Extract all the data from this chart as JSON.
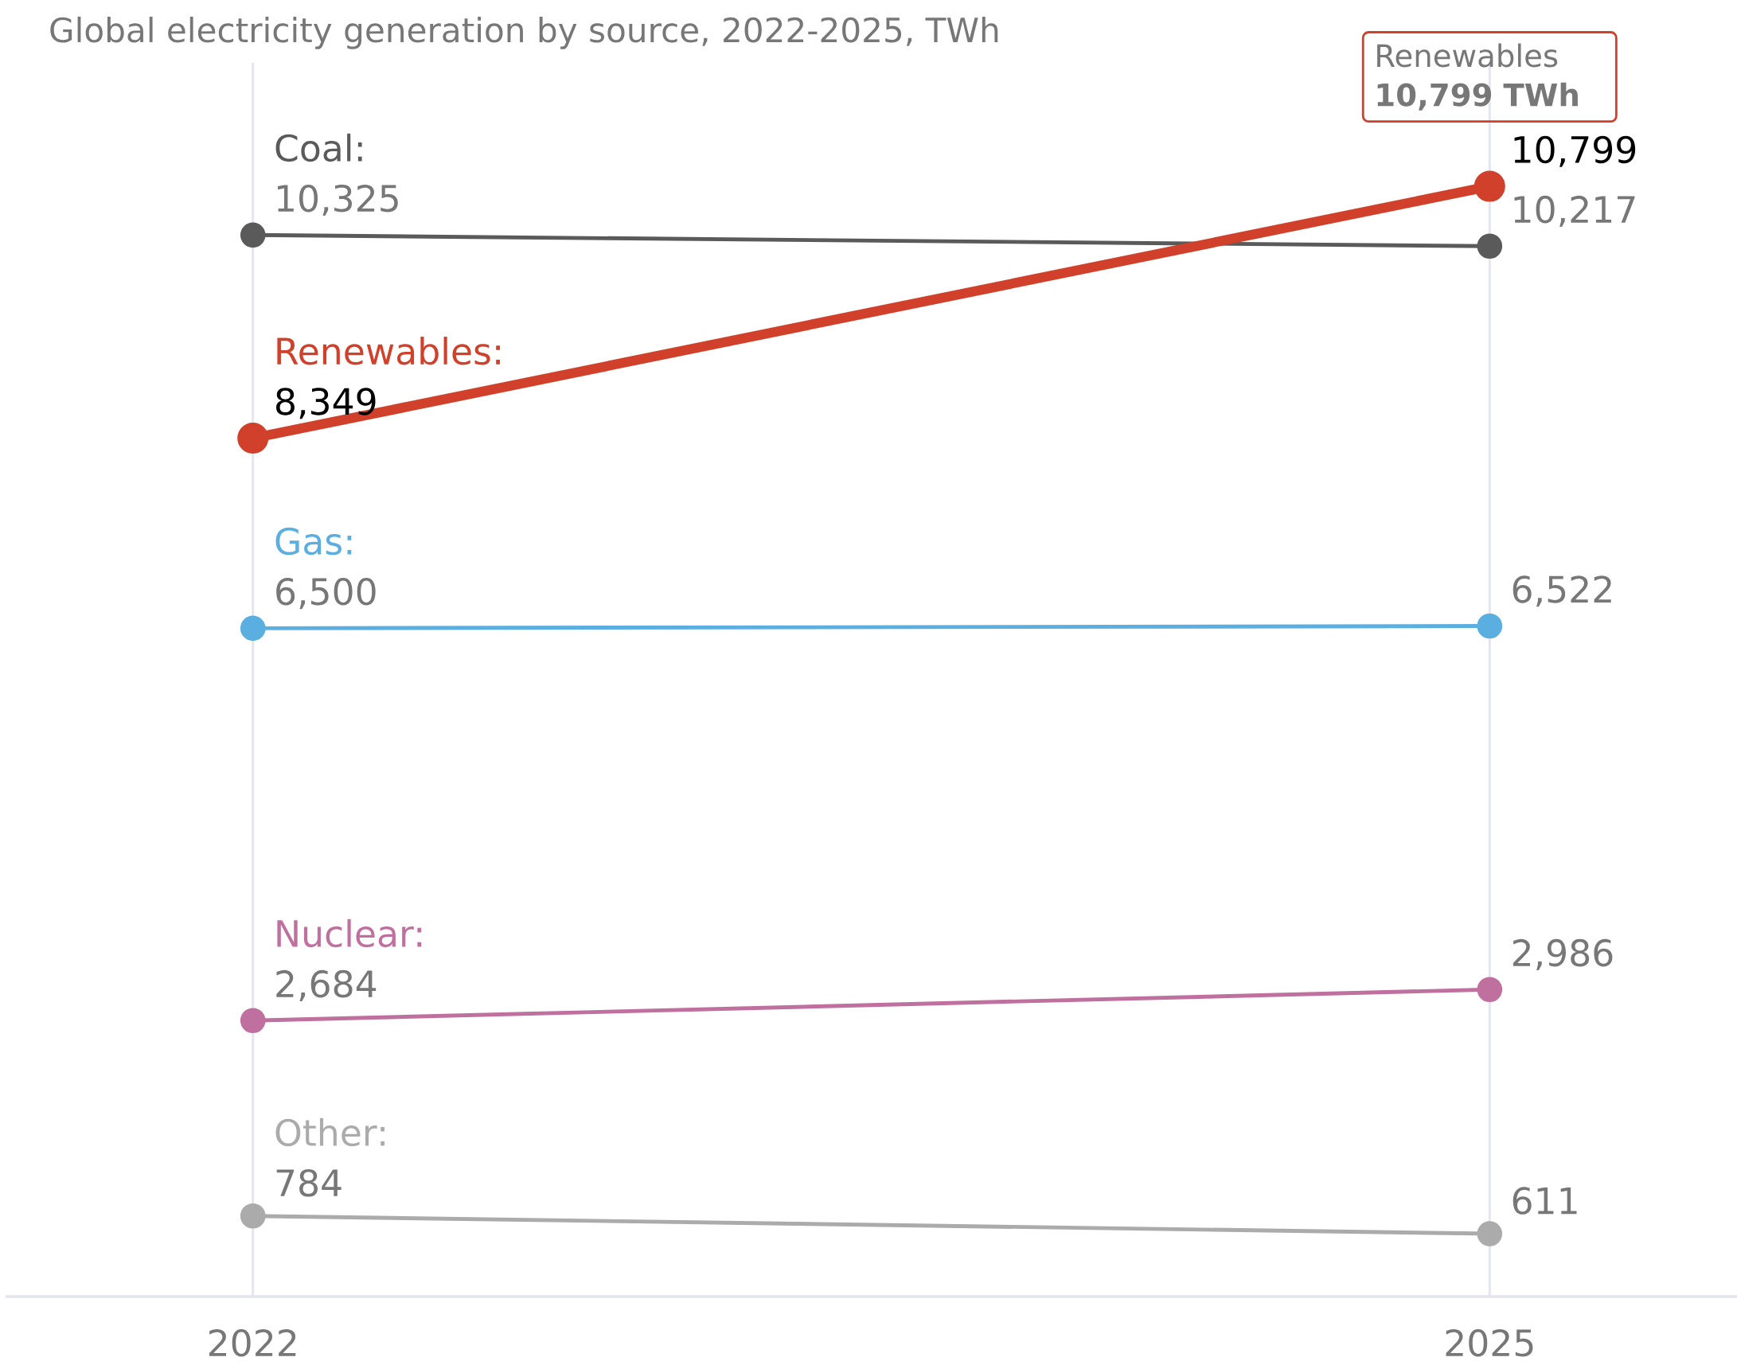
{
  "chart_data": {
    "type": "line",
    "subtitle": "Global electricity generation by source, 2022-2025, TWh",
    "categories": [
      "2022",
      "2025"
    ],
    "ylim": [
      0,
      12000
    ],
    "tick_labels": "x",
    "grid": "x",
    "marker": "circle",
    "series": [
      {
        "name": "Coal:",
        "color": "#5a5a5a",
        "values": [
          10325,
          10217
        ],
        "value_labels": [
          "10,325",
          "10,217"
        ]
      },
      {
        "name": "Renewables:",
        "color": "#d0402a",
        "values": [
          8349,
          10799
        ],
        "value_labels": [
          "8,349",
          "10,799"
        ]
      },
      {
        "name": "Gas:",
        "color": "#5aaee0",
        "values": [
          6500,
          6522
        ],
        "value_labels": [
          "6,500",
          "6,522"
        ]
      },
      {
        "name": "Nuclear:",
        "color": "#c0709e",
        "values": [
          2684,
          2986
        ],
        "value_labels": [
          "2,684",
          "2,986"
        ]
      },
      {
        "name": "Other:",
        "color": "#ababab",
        "values": [
          784,
          611
        ],
        "value_labels": [
          "784",
          "611"
        ]
      }
    ],
    "annotations": [
      {
        "text": "Renewables **10,799 TWh**",
        "x": "2025",
        "y": 10799
      }
    ]
  }
}
